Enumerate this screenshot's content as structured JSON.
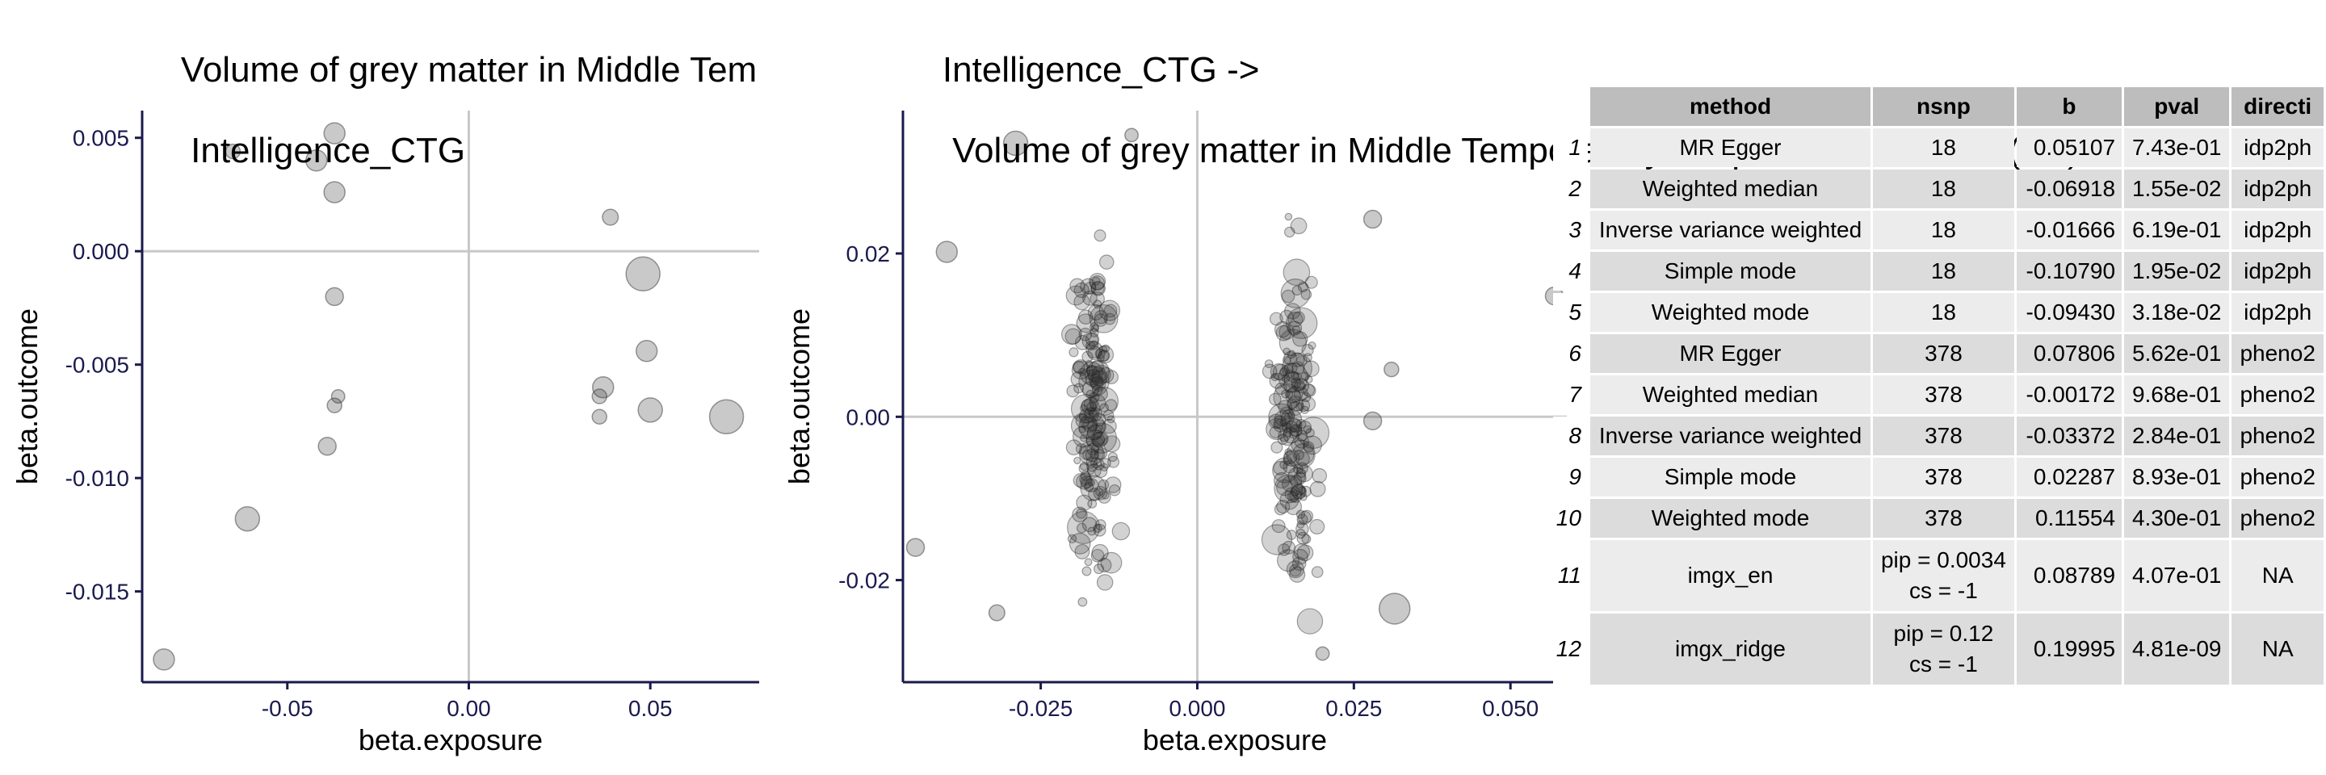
{
  "chart_data": [
    {
      "type": "scatter",
      "title_line1": "Volume of grey matter in Middle Tem",
      "title_line2": " Intelligence_CTG",
      "xlabel": "beta.exposure",
      "ylabel": "beta.outcome",
      "xlim": [
        -0.09,
        0.08
      ],
      "ylim": [
        -0.019,
        0.0062
      ],
      "xticks": [
        -0.05,
        0.0,
        0.05
      ],
      "xtick_labels": [
        "-0.05",
        "0.00",
        "0.05"
      ],
      "yticks": [
        0.005,
        0.0,
        -0.005,
        -0.01,
        -0.015
      ],
      "ytick_labels": [
        "0.005",
        "0.000",
        "-0.005",
        "-0.010",
        "-0.015"
      ],
      "points": [
        {
          "x": -0.065,
          "y": 0.0044,
          "size": 1
        },
        {
          "x": -0.042,
          "y": 0.004,
          "size": 2
        },
        {
          "x": -0.037,
          "y": 0.0052,
          "size": 2
        },
        {
          "x": -0.037,
          "y": 0.0026,
          "size": 2
        },
        {
          "x": -0.037,
          "y": -0.002,
          "size": 1.5
        },
        {
          "x": -0.036,
          "y": -0.0064,
          "size": 0.8
        },
        {
          "x": -0.037,
          "y": -0.0068,
          "size": 1
        },
        {
          "x": -0.039,
          "y": -0.0086,
          "size": 1.5
        },
        {
          "x": -0.061,
          "y": -0.0118,
          "size": 2.5
        },
        {
          "x": -0.084,
          "y": -0.018,
          "size": 2
        },
        {
          "x": 0.039,
          "y": 0.0015,
          "size": 1.2
        },
        {
          "x": 0.048,
          "y": -0.001,
          "size": 4
        },
        {
          "x": 0.049,
          "y": -0.0044,
          "size": 2
        },
        {
          "x": 0.037,
          "y": -0.006,
          "size": 2
        },
        {
          "x": 0.036,
          "y": -0.0064,
          "size": 1
        },
        {
          "x": 0.036,
          "y": -0.0073,
          "size": 1
        },
        {
          "x": 0.05,
          "y": -0.007,
          "size": 2.5
        },
        {
          "x": 0.071,
          "y": -0.0073,
          "size": 4
        }
      ]
    },
    {
      "type": "scatter",
      "title_line1": "Intelligence_CTG ->",
      "title_line2": " Volume of grey matter in Middle Temporal Gyrus, posterior division (left)",
      "xlabel": "beta.exposure",
      "ylabel": "beta.outcome",
      "xlim": [
        -0.047,
        0.059
      ],
      "ylim": [
        -0.0325,
        0.0375
      ],
      "xticks": [
        -0.025,
        0.0,
        0.025,
        0.05
      ],
      "xtick_labels": [
        "-0.025",
        "0.000",
        "0.025",
        "0.050"
      ],
      "yticks": [
        0.02,
        0.0,
        -0.02
      ],
      "ytick_labels": [
        "0.02",
        "0.00",
        "-0.02"
      ],
      "clusters": [
        {
          "x_center": -0.0165,
          "x_spread": 0.005,
          "count": 185
        },
        {
          "x_center": 0.0155,
          "x_spread": 0.0045,
          "count": 175
        }
      ],
      "outliers": [
        {
          "x": -0.029,
          "y": 0.0335,
          "size": 2.5
        },
        {
          "x": -0.0105,
          "y": 0.0345,
          "size": 0.8
        },
        {
          "x": -0.04,
          "y": 0.0202,
          "size": 2
        },
        {
          "x": -0.045,
          "y": -0.016,
          "size": 1.5
        },
        {
          "x": -0.032,
          "y": -0.024,
          "size": 1.2
        },
        {
          "x": 0.0315,
          "y": -0.0235,
          "size": 3.5
        },
        {
          "x": 0.028,
          "y": 0.0242,
          "size": 1.5
        },
        {
          "x": 0.057,
          "y": 0.0148,
          "size": 1.5
        },
        {
          "x": 0.02,
          "y": -0.029,
          "size": 0.8
        },
        {
          "x": 0.028,
          "y": -0.0005,
          "size": 1.5
        },
        {
          "x": 0.031,
          "y": 0.0058,
          "size": 1
        }
      ]
    }
  ],
  "table": {
    "headers": [
      "method",
      "nsnp",
      "b",
      "pval",
      "directi"
    ],
    "rows": [
      {
        "rn": "1",
        "method": "MR Egger",
        "nsnp": "18",
        "b": "0.05107",
        "pval": "7.43e-01",
        "dir": "idp2ph"
      },
      {
        "rn": "2",
        "method": "Weighted median",
        "nsnp": "18",
        "b": "-0.06918",
        "pval": "1.55e-02",
        "dir": "idp2ph"
      },
      {
        "rn": "3",
        "method": "Inverse variance weighted",
        "nsnp": "18",
        "b": "-0.01666",
        "pval": "6.19e-01",
        "dir": "idp2ph"
      },
      {
        "rn": "4",
        "method": "Simple mode",
        "nsnp": "18",
        "b": "-0.10790",
        "pval": "1.95e-02",
        "dir": "idp2ph"
      },
      {
        "rn": "5",
        "method": "Weighted mode",
        "nsnp": "18",
        "b": "-0.09430",
        "pval": "3.18e-02",
        "dir": "idp2ph"
      },
      {
        "rn": "6",
        "method": "MR Egger",
        "nsnp": "378",
        "b": "0.07806",
        "pval": "5.62e-01",
        "dir": "pheno2"
      },
      {
        "rn": "7",
        "method": "Weighted median",
        "nsnp": "378",
        "b": "-0.00172",
        "pval": "9.68e-01",
        "dir": "pheno2"
      },
      {
        "rn": "8",
        "method": "Inverse variance weighted",
        "nsnp": "378",
        "b": "-0.03372",
        "pval": "2.84e-01",
        "dir": "pheno2"
      },
      {
        "rn": "9",
        "method": "Simple mode",
        "nsnp": "378",
        "b": "0.02287",
        "pval": "8.93e-01",
        "dir": "pheno2"
      },
      {
        "rn": "10",
        "method": "Weighted mode",
        "nsnp": "378",
        "b": "0.11554",
        "pval": "4.30e-01",
        "dir": "pheno2"
      },
      {
        "rn": "11",
        "method": "imgx_en",
        "nsnp1": "pip = 0.0034",
        "nsnp2": "cs = -1",
        "b": "0.08789",
        "pval": "4.07e-01",
        "dir": "NA"
      },
      {
        "rn": "12",
        "method": "imgx_ridge",
        "nsnp1": "pip = 0.12",
        "nsnp2": "cs = -1",
        "b": "0.19995",
        "pval": "4.81e-09",
        "dir": "NA"
      }
    ]
  }
}
